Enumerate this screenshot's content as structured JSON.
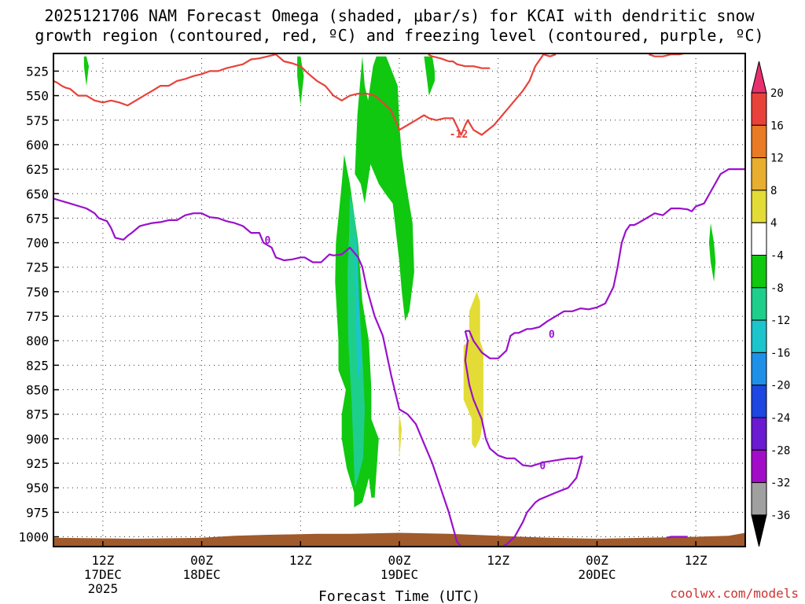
{
  "title_line1": "2025121706 NAM Forecast Omega (shaded, μbar/s) for KCAI with dendritic snow",
  "title_line2": "growth region (contoured, red, ºC) and freezing level (contoured, purple, ºC)",
  "credit": "coolwx.com/models",
  "chart_data": {
    "type": "heatmap",
    "xlabel": "Forecast Time (UTC)",
    "y_scale": "pressure (hPa), reversed",
    "ylim": [
      1010,
      507
    ],
    "xlim_hours": [
      0,
      84
    ],
    "x_ticks": [
      {
        "hour": 6,
        "lines": [
          "12Z",
          "17DEC",
          "2025"
        ]
      },
      {
        "hour": 18,
        "lines": [
          "00Z",
          "18DEC"
        ]
      },
      {
        "hour": 30,
        "lines": [
          "12Z"
        ]
      },
      {
        "hour": 42,
        "lines": [
          "00Z",
          "19DEC"
        ]
      },
      {
        "hour": 54,
        "lines": [
          "12Z"
        ]
      },
      {
        "hour": 66,
        "lines": [
          "00Z",
          "20DEC"
        ]
      },
      {
        "hour": 78,
        "lines": [
          "12Z"
        ]
      }
    ],
    "y_ticks": [
      525,
      550,
      575,
      600,
      625,
      650,
      675,
      700,
      725,
      750,
      775,
      800,
      825,
      850,
      875,
      900,
      925,
      950,
      975,
      1000
    ],
    "grid": true,
    "colorbar": {
      "labels": [
        "20",
        "16",
        "12",
        "8",
        "4",
        "-4",
        "-8",
        "-12",
        "-16",
        "-20",
        "-24",
        "-28",
        "-32",
        "-36"
      ],
      "colors": [
        "#e8306e",
        "#e8423a",
        "#e87b24",
        "#e8ae30",
        "#e3dc36",
        "#ffffff",
        "#10c810",
        "#1ecf8c",
        "#1cc4cc",
        "#1e90e8",
        "#1e46e0",
        "#6a1ad0",
        "#a20cc8",
        "#a0a0a0",
        "#000000"
      ]
    },
    "omega_areas": [
      {
        "color": "#10c810",
        "x": [
          3.7,
          4.0,
          4.3,
          4.0,
          3.7
        ],
        "p": [
          510,
          510,
          520,
          540,
          520
        ]
      },
      {
        "color": "#10c810",
        "x": [
          29.6,
          30.0,
          30.4,
          30.0,
          29.6
        ],
        "p": [
          510,
          510,
          530,
          560,
          530
        ]
      },
      {
        "color": "#10c810",
        "x": [
          35.3,
          36.0,
          37.0,
          37.5,
          38.3,
          38.6,
          38.6,
          39.5,
          39.0,
          38.6,
          38.3,
          38.0,
          37.5,
          36.5,
          36.5,
          35.6,
          35.0,
          35.0,
          35.5,
          34.6,
          34.6,
          34.2,
          34.3,
          35.0,
          35.3
        ],
        "p": [
          610,
          640,
          700,
          760,
          800,
          850,
          880,
          900,
          960,
          960,
          940,
          950,
          965,
          970,
          955,
          930,
          900,
          875,
          850,
          830,
          800,
          740,
          700,
          640,
          610
        ]
      },
      {
        "color": "#10c810",
        "x": [
          37.5,
          37.8,
          38.2,
          38.8,
          39.2,
          40.4,
          41.8,
          42.0,
          42.3,
          42.8,
          43.6,
          43.8,
          43.2,
          42.7,
          42.3,
          42.0,
          41.2,
          40.3,
          39.5,
          38.5,
          37.8,
          37.3,
          36.6,
          36.9,
          37.5
        ],
        "p": [
          510,
          540,
          555,
          520,
          510,
          510,
          540,
          580,
          610,
          640,
          680,
          730,
          770,
          780,
          750,
          720,
          660,
          650,
          640,
          620,
          660,
          640,
          630,
          570,
          510
        ]
      },
      {
        "color": "#10c810",
        "x": [
          45.0,
          46.0,
          46.3,
          46.3,
          45.6,
          45.3,
          45.0
        ],
        "p": [
          510,
          510,
          525,
          535,
          550,
          530,
          510
        ]
      },
      {
        "color": "#10c810",
        "x": [
          79.8,
          80.2,
          80.4,
          80.2,
          79.8,
          79.6
        ],
        "p": [
          680,
          700,
          720,
          740,
          720,
          700
        ]
      },
      {
        "color": "#1ecf8c",
        "x": [
          36.0,
          36.5,
          36.9,
          37.1,
          37.4,
          37.6,
          37.8,
          37.6,
          37.0,
          36.6,
          36.2,
          35.8,
          35.7,
          35.9,
          36.0
        ],
        "p": [
          650,
          670,
          700,
          760,
          800,
          830,
          870,
          920,
          940,
          950,
          860,
          800,
          730,
          690,
          650
        ]
      },
      {
        "color": "#1cc4cc",
        "x": [
          36.5,
          36.8,
          37.0,
          37.2,
          37.4,
          37.0,
          36.8,
          36.6,
          36.5
        ],
        "p": [
          690,
          700,
          740,
          780,
          820,
          840,
          800,
          740,
          690
        ]
      },
      {
        "color": "#e3dc36",
        "x": [
          50.5,
          51.4,
          51.8,
          51.8,
          52.2,
          52.2,
          51.8,
          51.2,
          50.8,
          50.8,
          49.8,
          49.8,
          50.5,
          50.5
        ],
        "p": [
          770,
          750,
          760,
          800,
          810,
          880,
          900,
          910,
          905,
          880,
          860,
          805,
          800,
          770
        ]
      },
      {
        "color": "#e3dc36",
        "x": [
          42.0,
          42.3,
          42.0,
          41.9
        ],
        "p": [
          875,
          890,
          920,
          890
        ]
      }
    ],
    "ground": {
      "color": "#a05a2c",
      "x": [
        0,
        10,
        18,
        22,
        26,
        32,
        36,
        42,
        48,
        54,
        60,
        66,
        72,
        78,
        82,
        84
      ],
      "p_top": [
        1001,
        1002,
        1001,
        999,
        998,
        997,
        997,
        996,
        997,
        999,
        1001,
        1002,
        1001,
        1000,
        999,
        996
      ]
    },
    "snow_growth_contour": {
      "name": "-12",
      "color": "#e8423a",
      "segments": [
        {
          "x": [
            0,
            0.5,
            1.0,
            1.5,
            2.0,
            3.0,
            4.0,
            5.0,
            6.0,
            7.0,
            8.0,
            9.0,
            10.0,
            11.0,
            12.0,
            13.0,
            14.0,
            15.0,
            16.0,
            17.0,
            18.0,
            19.0,
            20.0,
            21.0,
            22.0,
            23.0,
            24.0,
            25.0,
            26.0,
            27.0,
            28.0,
            29.0,
            30.0,
            31.0,
            32.0,
            33.0,
            34.0,
            35.0,
            36.0,
            37.0,
            38.0,
            39.0,
            40.0,
            41.0,
            42.0,
            43.0,
            44.0,
            45.0,
            45.6,
            46.5,
            47.5,
            48.5,
            49.5,
            50.0,
            50.3,
            51.0,
            52.0,
            53.5,
            55.0,
            56.0,
            57.0,
            57.8,
            58.5,
            59.5,
            60.3,
            61.0
          ],
          "p": [
            535,
            537,
            540,
            542,
            543,
            550,
            550,
            555,
            557,
            555,
            557,
            560,
            555,
            550,
            545,
            540,
            540,
            535,
            533,
            530,
            528,
            525,
            525,
            522,
            520,
            518,
            513,
            512,
            510,
            508,
            515,
            517,
            520,
            528,
            535,
            540,
            550,
            555,
            550,
            548,
            548,
            550,
            557,
            565,
            585,
            580,
            575,
            570,
            573,
            575,
            573,
            573,
            590,
            580,
            575,
            585,
            590,
            580,
            565,
            555,
            545,
            535,
            520,
            508,
            510,
            508
          ]
        },
        {
          "x": [
            45.5,
            46.0,
            47.0,
            48.0,
            48.5,
            49.0,
            50.0,
            51.0,
            52.0,
            53.0
          ],
          "p": [
            508,
            510,
            512,
            515,
            515,
            518,
            520,
            520,
            522,
            522
          ]
        },
        {
          "x": [
            72.3,
            73.0,
            74.0,
            75.0,
            76.0,
            77.0,
            78.0
          ],
          "p": [
            508,
            510,
            510,
            508,
            508,
            506,
            506
          ]
        }
      ],
      "labels": [
        {
          "text": "-12",
          "x": 49.2,
          "p": 589
        }
      ]
    },
    "freezing_level_contour": {
      "name": "0",
      "color": "#9911cc",
      "segments": [
        {
          "x": [
            0,
            2.0,
            4.0,
            5.0,
            5.5,
            6.5,
            7.0,
            7.5,
            8.5,
            9.0,
            9.5,
            10.5,
            11.0,
            12.0,
            13.0,
            14.0,
            15.0,
            16.0,
            17.0,
            18.0,
            18.5,
            19.0,
            20.0,
            21.0,
            22.0,
            23.0,
            24.0,
            25.0,
            25.5,
            26.5,
            27.0,
            28.0,
            29.0,
            30.0,
            30.5,
            31.5,
            32.5,
            33.5,
            34.0,
            35.0,
            36.0,
            36.5,
            37.0,
            37.5,
            38.0,
            38.5,
            39.0,
            40.0,
            41.0,
            42.0,
            43.0,
            44.0,
            45.0,
            46.0,
            47.0,
            48.0,
            48.5,
            49.0,
            49.5,
            50.0,
            50.5
          ],
          "p": [
            655,
            660,
            665,
            670,
            675,
            678,
            685,
            695,
            697,
            693,
            690,
            683,
            682,
            680,
            679,
            677,
            677,
            672,
            670,
            670,
            672,
            674,
            675,
            678,
            680,
            683,
            690,
            690,
            700,
            705,
            715,
            718,
            717,
            715,
            715,
            720,
            720,
            712,
            713,
            712,
            705,
            710,
            715,
            725,
            745,
            760,
            775,
            795,
            835,
            870,
            875,
            885,
            905,
            925,
            950,
            975,
            990,
            1005,
            1010,
            1012,
            1012
          ]
        },
        {
          "x": [
            54.5,
            55.0,
            56.0,
            57.0,
            57.5,
            58.5,
            59.0,
            61.0,
            62.5,
            63.5,
            64.0,
            64.2,
            63.5,
            62.5,
            61.0,
            59.5,
            58.0,
            57.0,
            56.0,
            55.0,
            54.0,
            53.0,
            52.5,
            52.0,
            51.5,
            51.0,
            50.5,
            50.0,
            50.3,
            50.0
          ],
          "p": [
            1010,
            1008,
            1000,
            985,
            975,
            965,
            962,
            955,
            950,
            940,
            925,
            918,
            920,
            920,
            922,
            924,
            928,
            927,
            920,
            920,
            917,
            910,
            900,
            880,
            870,
            860,
            845,
            820,
            800,
            790
          ]
        },
        {
          "x": [
            50.0,
            50.5,
            51.0,
            52.0,
            53.0,
            54.0,
            55.0,
            55.5,
            56.0,
            56.5,
            57.0,
            57.5,
            58.0,
            59.0,
            60.0,
            61.0,
            62.0,
            63.0,
            64.0,
            65.0,
            66.0,
            67.0,
            68.0,
            68.5,
            69.0,
            69.5,
            70.0,
            70.5,
            71.0,
            72.0,
            73.0,
            74.0,
            75.0,
            76.0,
            77.0,
            77.5,
            78.0,
            79.0,
            80.0,
            81.0,
            82.0,
            83.0,
            84.0
          ],
          "p": [
            790,
            790,
            800,
            812,
            818,
            818,
            810,
            795,
            792,
            792,
            790,
            788,
            788,
            786,
            780,
            775,
            770,
            770,
            767,
            768,
            766,
            762,
            745,
            725,
            700,
            688,
            682,
            682,
            680,
            675,
            670,
            672,
            665,
            665,
            666,
            668,
            663,
            660,
            645,
            630,
            625,
            625,
            625
          ]
        },
        {
          "x": [
            74.5,
            75.0,
            76.0,
            77.0
          ],
          "p": [
            1001,
            1000,
            1000,
            1000
          ]
        }
      ],
      "labels": [
        {
          "text": "0",
          "x": 26.0,
          "p": 697
        },
        {
          "text": "0",
          "x": 60.5,
          "p": 793
        },
        {
          "text": "0",
          "x": 59.4,
          "p": 927
        }
      ]
    }
  }
}
